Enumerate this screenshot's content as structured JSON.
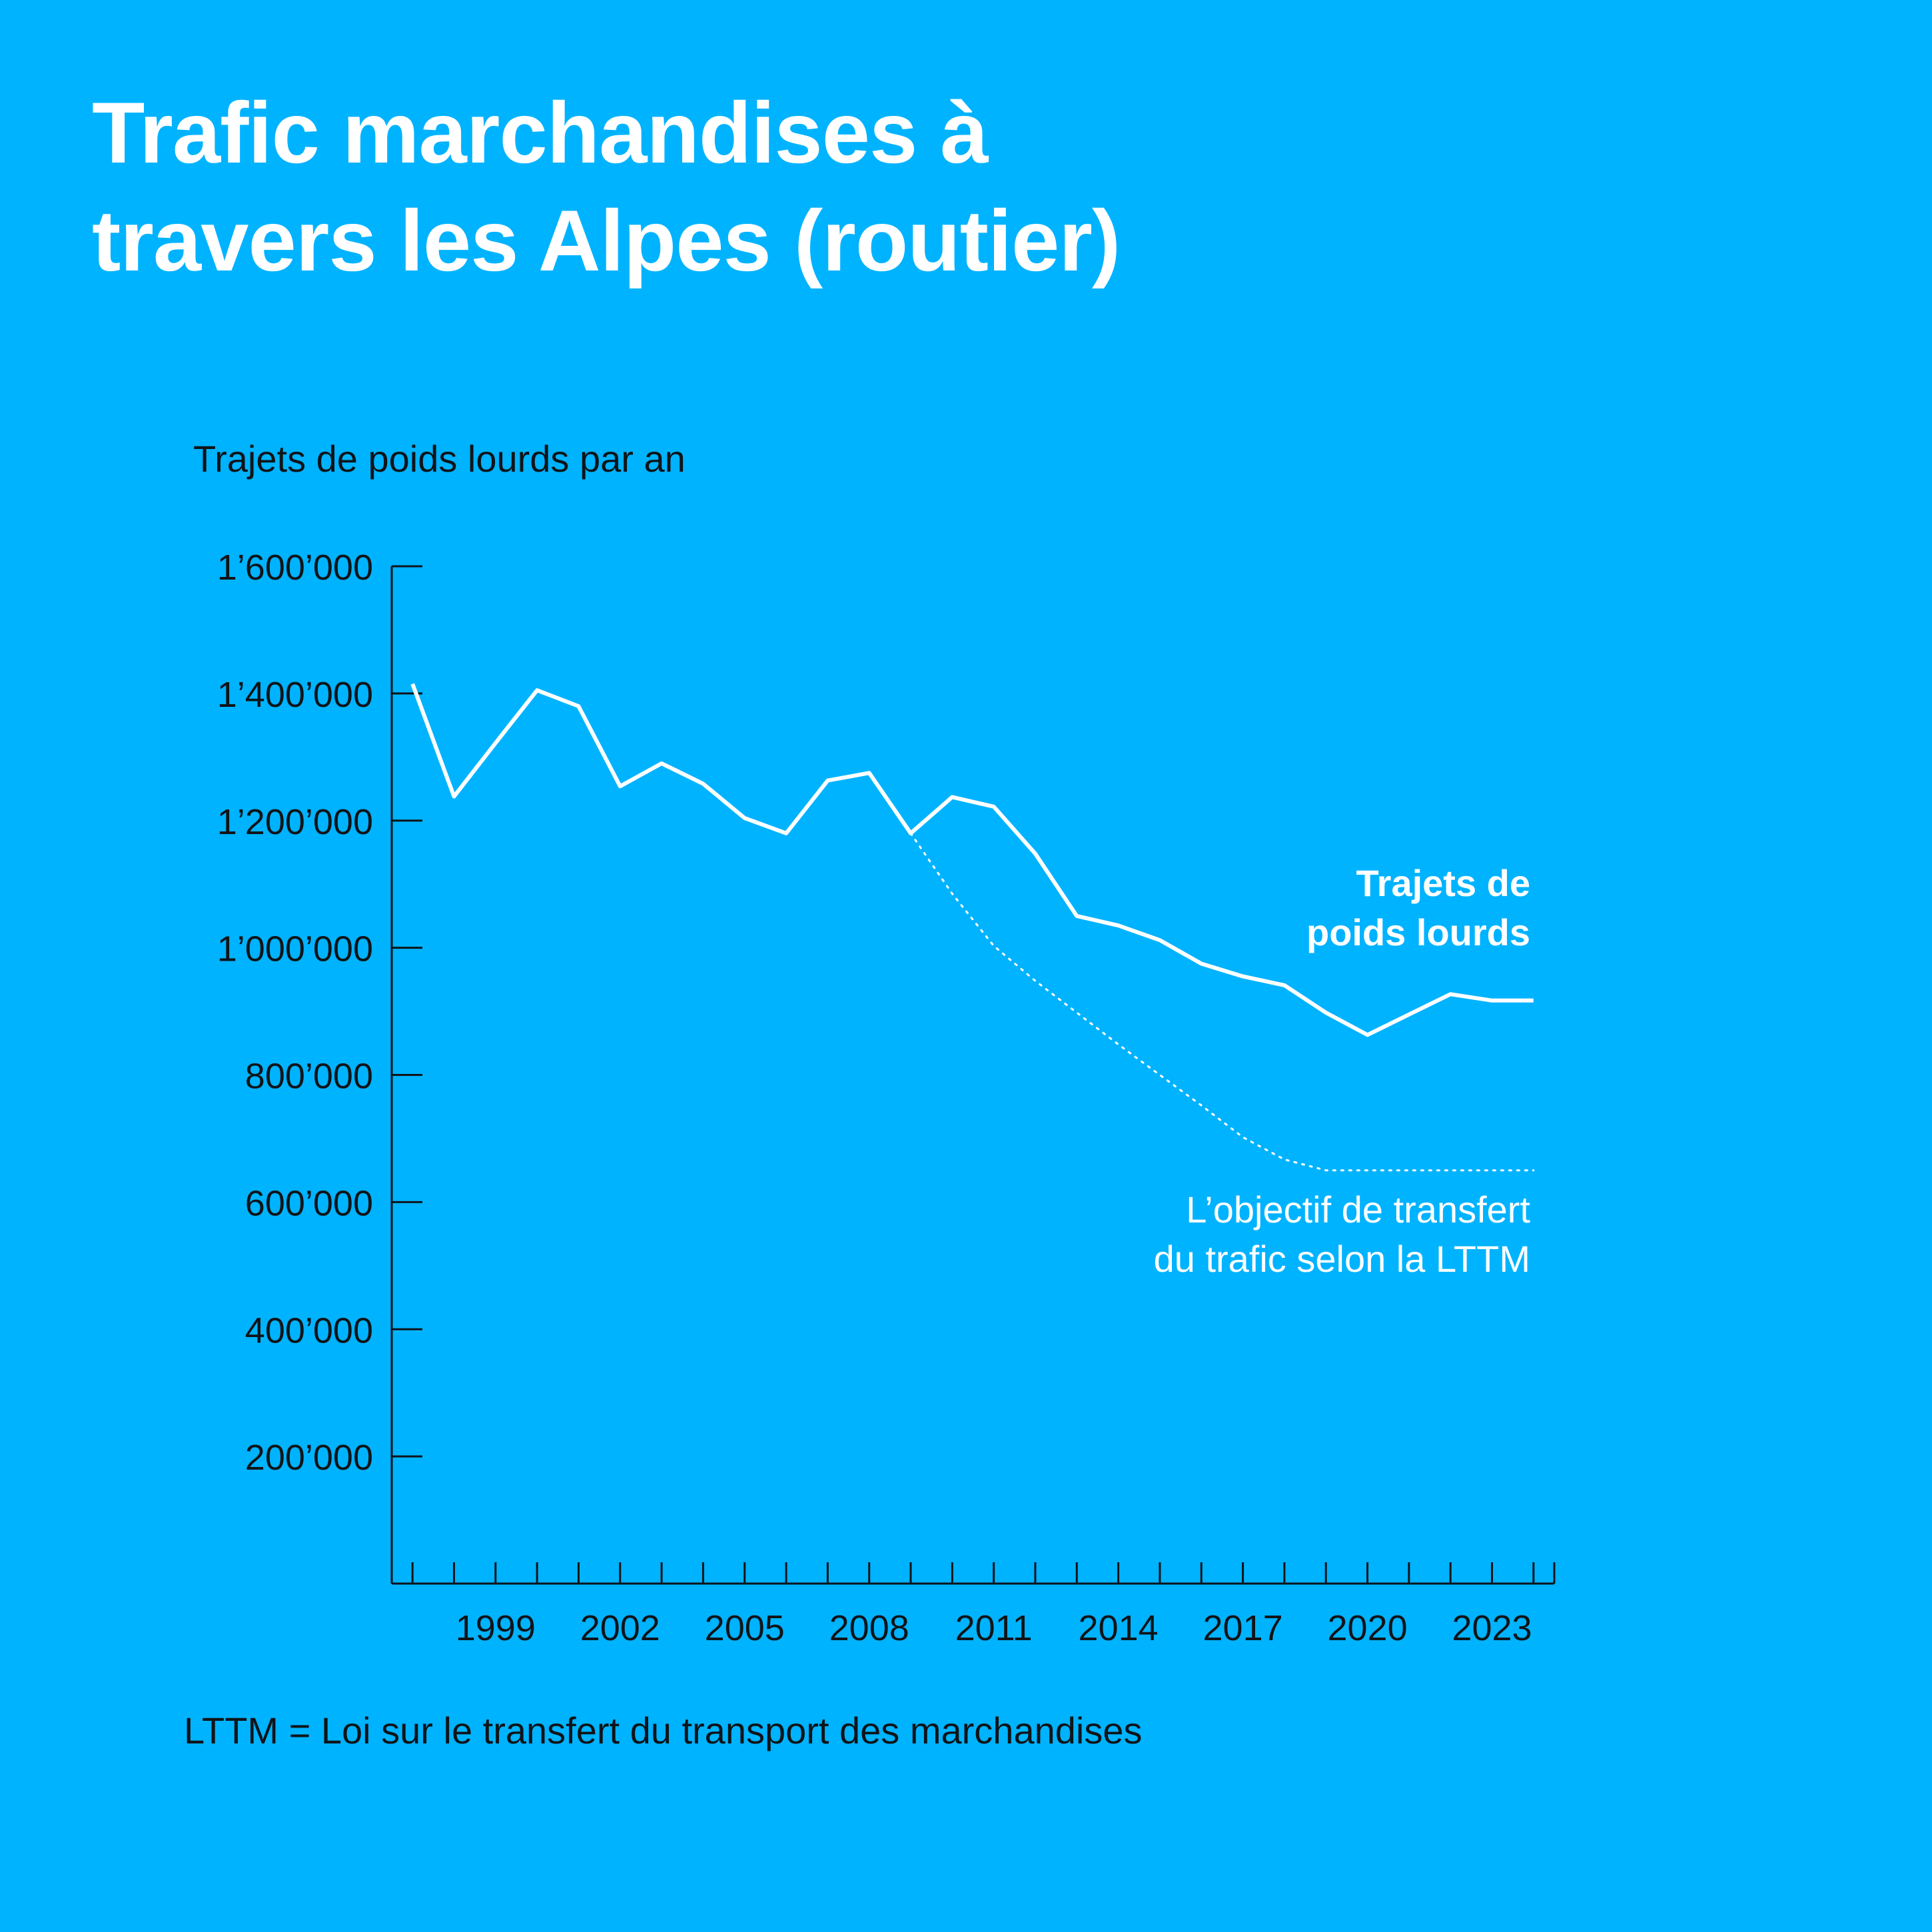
{
  "title_lines": [
    "Trafic marchandises à",
    "travers les Alpes (routier)"
  ],
  "footnote": "LTTM = Loi sur le transfert du transport des marchandises",
  "colors": {
    "background": "#00b3ff",
    "line": "#ffffff",
    "axis": "#101418"
  },
  "chart_data": {
    "type": "line",
    "title": "Trafic marchandises à travers les Alpes (routier)",
    "ylabel": "Trajets de poids lourds par an",
    "xlabel": "",
    "x": [
      1997,
      1998,
      1999,
      2000,
      2001,
      2002,
      2003,
      2004,
      2005,
      2006,
      2007,
      2008,
      2009,
      2010,
      2011,
      2012,
      2013,
      2014,
      2015,
      2016,
      2017,
      2018,
      2019,
      2020,
      2021,
      2022,
      2023,
      2024
    ],
    "xlim": [
      1996.5,
      2024.5
    ],
    "ylim": [
      0,
      1600000
    ],
    "yticks": [
      200000,
      400000,
      600000,
      800000,
      1000000,
      1200000,
      1400000,
      1600000
    ],
    "ytick_labels": [
      "200’000",
      "400’000",
      "600’000",
      "800’000",
      "1’000’000",
      "1’200’000",
      "1’400’000",
      "1’600’000"
    ],
    "xtick_labels": [
      {
        "year": 1999,
        "label": "1999"
      },
      {
        "year": 2002,
        "label": "2002"
      },
      {
        "year": 2005,
        "label": "2005"
      },
      {
        "year": 2008,
        "label": "2008"
      },
      {
        "year": 2011,
        "label": "2011"
      },
      {
        "year": 2014,
        "label": "2014"
      },
      {
        "year": 2017,
        "label": "2017"
      },
      {
        "year": 2020,
        "label": "2020"
      },
      {
        "year": 2023,
        "label": "2023"
      }
    ],
    "grid": false,
    "series": [
      {
        "name": "Trajets de poids lourds",
        "label_lines": [
          "Trajets de",
          "poids lourds"
        ],
        "style": "solid",
        "x": [
          1997,
          1998,
          1999,
          2000,
          2001,
          2002,
          2003,
          2004,
          2005,
          2006,
          2007,
          2008,
          2009,
          2010,
          2011,
          2012,
          2013,
          2014,
          2015,
          2016,
          2017,
          2018,
          2019,
          2020,
          2021,
          2022,
          2023,
          2024
        ],
        "values": [
          1415000,
          1238000,
          1322000,
          1405000,
          1380000,
          1254000,
          1290000,
          1258000,
          1204000,
          1180000,
          1263000,
          1275000,
          1180000,
          1237000,
          1222000,
          1148000,
          1050000,
          1035000,
          1012000,
          975000,
          955000,
          941000,
          898000,
          863000,
          895000,
          927000,
          917000,
          917000
        ]
      },
      {
        "name": "L’objectif de transfert du trafic selon la LTTM",
        "label_lines": [
          "L’objectif de transfert",
          "du trafic selon la LTTM"
        ],
        "style": "dotted",
        "x": [
          2009,
          2010,
          2011,
          2012,
          2013,
          2014,
          2015,
          2016,
          2017,
          2018,
          2019,
          2020,
          2021,
          2022,
          2023,
          2024
        ],
        "values": [
          1180000,
          1085000,
          1003000,
          948000,
          898000,
          848000,
          800000,
          752000,
          702000,
          667000,
          650000,
          650000,
          650000,
          650000,
          650000,
          650000
        ]
      }
    ]
  }
}
